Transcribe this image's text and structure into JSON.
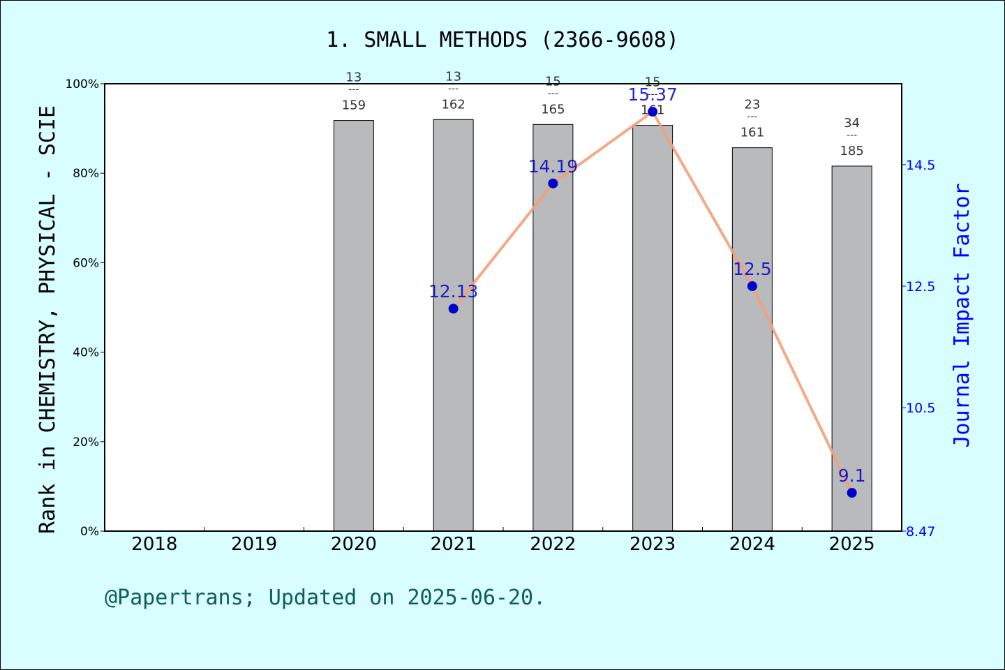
{
  "chart_data": {
    "type": "bar",
    "title": "1. SMALL METHODS (2366-9608)",
    "ylabel": "Rank in CHEMISTRY, PHYSICAL - SCIE",
    "y2label": "Journal Impact Factor",
    "footer": "@Papertrans; Updated on 2025-06-20.",
    "categories": [
      "2018",
      "2019",
      "2020",
      "2021",
      "2022",
      "2023",
      "2024",
      "2025"
    ],
    "ylim": [
      0,
      100
    ],
    "yticks": [
      "0%",
      "20%",
      "40%",
      "60%",
      "80%",
      "100%"
    ],
    "y2lim": [
      8.47,
      15.83
    ],
    "y2ticks": [
      "8.47",
      "10.5",
      "12.5",
      "14.5"
    ],
    "bars": {
      "values": [
        null,
        null,
        91.8,
        92.0,
        90.9,
        90.7,
        85.7,
        81.6
      ],
      "rank": [
        null,
        null,
        "13",
        "13",
        "15",
        "15",
        "23",
        "34"
      ],
      "total": [
        null,
        null,
        "159",
        "162",
        "165",
        "161",
        "161",
        "185"
      ],
      "color": "#b8babc"
    },
    "impact_factor": {
      "values": [
        null,
        null,
        null,
        12.13,
        14.19,
        15.37,
        12.5,
        9.1
      ],
      "labels": [
        null,
        null,
        null,
        "12.13",
        "14.19",
        "15.37",
        "12.5",
        "9.1"
      ],
      "line_color": "#f4a07a",
      "marker_color": "#0000cc",
      "label_color": "#0000cc"
    },
    "grid": false,
    "legend": "none"
  }
}
